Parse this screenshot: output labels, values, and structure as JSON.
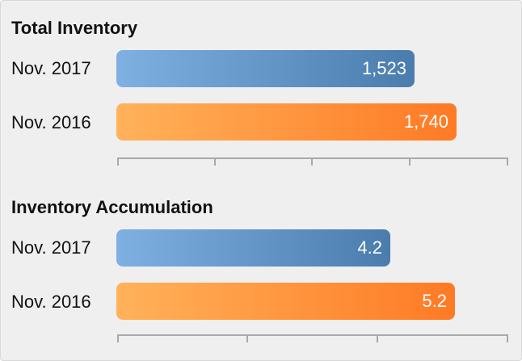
{
  "chart_data": [
    {
      "type": "bar",
      "orientation": "horizontal",
      "title": "Total Inventory",
      "categories": [
        "Nov. 2017",
        "Nov. 2016"
      ],
      "values": [
        1523,
        1740
      ],
      "value_labels": [
        "1,523",
        "1,740"
      ],
      "xlim": [
        0,
        2000
      ],
      "bar_colors": [
        "#4a7cad",
        "#ff7a25"
      ],
      "grid": false
    },
    {
      "type": "bar",
      "orientation": "horizontal",
      "title": "Inventory Accumulation",
      "categories": [
        "Nov. 2017",
        "Nov. 2016"
      ],
      "values": [
        4.2,
        5.2
      ],
      "value_labels": [
        "4.2",
        "5.2"
      ],
      "xlim": [
        0,
        6
      ],
      "bar_colors": [
        "#4a7cad",
        "#ff7a25"
      ],
      "grid": false
    }
  ]
}
